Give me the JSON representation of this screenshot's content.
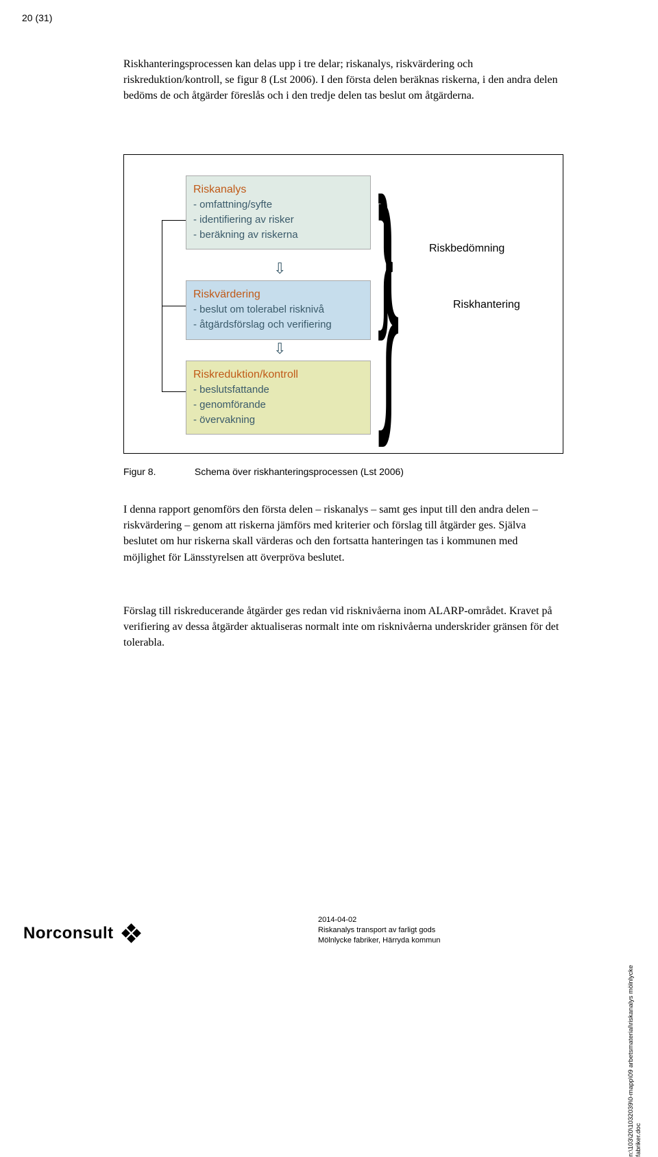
{
  "page_number": "20 (31)",
  "para1": "Riskhanteringsprocessen kan delas upp i tre delar; riskanalys, riskvärdering och riskreduktion/kontroll, se figur 8 (Lst 2006). I den första delen beräknas riskerna, i den andra delen bedöms de och åtgärder föreslås och i den tredje delen tas beslut om åtgärderna.",
  "figure": {
    "box1": {
      "title": "Riskanalys",
      "l1": "- omfattning/syfte",
      "l2": "- identifiering av risker",
      "l3": "- beräkning av riskerna",
      "bg": "#e0ebe5"
    },
    "box2": {
      "title": "Riskvärdering",
      "l1": "- beslut om tolerabel risknivå",
      "l2": "- åtgärdsförslag och verifiering",
      "bg": "#c6ddec"
    },
    "box3": {
      "title": "Riskreduktion/kontroll",
      "l1": "- beslutsfattande",
      "l2": "- genomförande",
      "l3": "- övervakning",
      "bg": "#e6e9b5"
    },
    "label_bedomning": "Riskbedömning",
    "label_hantering": "Riskhantering",
    "title_color": "#c05a18",
    "line_color": "#3a5a6a"
  },
  "caption_label": "Figur 8.",
  "caption_text": "Schema över riskhanteringsprocessen (Lst 2006)",
  "para2": "I denna rapport genomförs den första delen – riskanalys – samt ges input till den andra delen – riskvärdering – genom att riskerna jämförs med kriterier och förslag till åtgärder ges. Själva beslutet om hur riskerna skall värderas och den fortsatta hanteringen tas i kommunen med möjlighet för Länsstyrelsen att överpröva beslutet.",
  "para3": "Förslag till riskreducerande åtgärder ges redan vid risknivåerna inom ALARP-området. Kravet på verifiering av dessa åtgärder aktualiseras normalt inte om risknivåerna underskrider gränsen för det tolerabla.",
  "footer": {
    "logo": "Norconsult",
    "date": "2014-04-02",
    "line2": "Riskanalys transport av farligt gods",
    "line3": "Mölnlycke fabriker, Härryda kommun",
    "side1": "n:\\103\\20\\1032039\\0-mapp\\09 arbetsmaterial\\riskanalys mölnlycke",
    "side2": "fabriker.doc"
  }
}
